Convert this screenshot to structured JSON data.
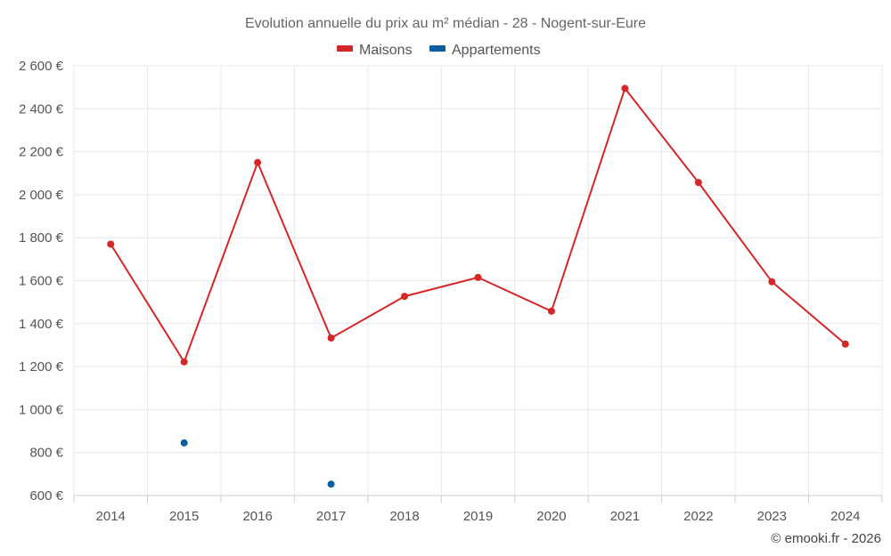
{
  "chart_data": {
    "type": "line",
    "title": "Evolution annuelle du prix au m² médian - 28 - Nogent-sur-Eure",
    "categories": [
      "2014",
      "2015",
      "2016",
      "2017",
      "2018",
      "2019",
      "2020",
      "2021",
      "2022",
      "2023",
      "2024"
    ],
    "series": [
      {
        "name": "Maisons",
        "color": "#d62728",
        "values": [
          1770,
          1222,
          2150,
          1333,
          1527,
          1615,
          1458,
          2495,
          2057,
          1595,
          1305
        ]
      },
      {
        "name": "Appartements",
        "color": "#0b5f9e",
        "values": [
          null,
          845,
          null,
          653,
          null,
          null,
          null,
          null,
          null,
          null,
          null
        ]
      }
    ],
    "ylim": [
      600,
      2600
    ],
    "yticks": [
      600,
      800,
      1000,
      1200,
      1400,
      1600,
      1800,
      2000,
      2200,
      2400,
      2600
    ],
    "ytick_labels": [
      "600 €",
      "800 €",
      "1 000 €",
      "1 200 €",
      "1 400 €",
      "1 600 €",
      "1 800 €",
      "2 000 €",
      "2 200 €",
      "2 400 €",
      "2 600 €"
    ],
    "xlabel": "",
    "ylabel": "",
    "grid": true,
    "legend_position": "top-center"
  },
  "credit": "© emooki.fr - 2026"
}
